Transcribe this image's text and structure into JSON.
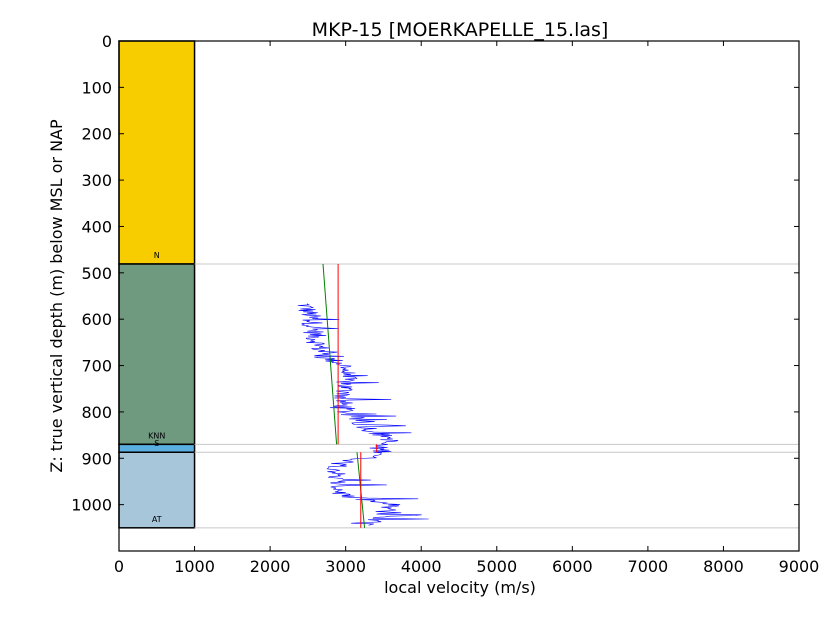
{
  "chart_data": {
    "type": "line",
    "title": "MKP-15 [MOERKAPELLE_15.las]",
    "xlabel": "local velocity (m/s)",
    "ylabel": "Z: true vertical depth (m) below MSL or NAP",
    "xlim": [
      0,
      9000
    ],
    "ylim": [
      1100,
      0
    ],
    "xticks": [
      0,
      1000,
      2000,
      3000,
      4000,
      5000,
      6000,
      7000,
      8000,
      9000
    ],
    "yticks": [
      0,
      100,
      200,
      300,
      400,
      500,
      600,
      700,
      800,
      900,
      1000
    ],
    "grid": false,
    "legend": "none",
    "lithology_column": {
      "x_range": [
        0,
        1000
      ],
      "units": [
        {
          "label": "N",
          "top": 0,
          "bottom": 481,
          "color": "#f8cd00"
        },
        {
          "label": "KNN",
          "top": 481,
          "bottom": 870,
          "color": "#6f9a80"
        },
        {
          "label": "S",
          "top": 870,
          "bottom": 887,
          "color": "#5aaee0"
        },
        {
          "label": "AT",
          "top": 887,
          "bottom": 1050,
          "color": "#a8c6da"
        }
      ]
    },
    "boundaries": [
      481,
      870,
      887,
      1050
    ],
    "series": [
      {
        "kind": "sonic log",
        "color": "#0000ff",
        "depth_start": 566,
        "depth_end": 1045,
        "anchors": [
          [
            566,
            2450
          ],
          [
            600,
            2550
          ],
          [
            640,
            2600
          ],
          [
            680,
            2700
          ],
          [
            700,
            3000
          ],
          [
            740,
            3000
          ],
          [
            780,
            2950
          ],
          [
            800,
            3000
          ],
          [
            840,
            3350
          ],
          [
            860,
            3600
          ],
          [
            875,
            3400
          ],
          [
            890,
            3550
          ],
          [
            910,
            2950
          ],
          [
            940,
            2850
          ],
          [
            980,
            2950
          ],
          [
            1000,
            3600
          ],
          [
            1020,
            3500
          ],
          [
            1045,
            3250
          ]
        ]
      },
      {
        "kind": "constant velocity",
        "color": "#ff0000",
        "segments": [
          {
            "x": 2900,
            "top": 481,
            "bottom": 870
          },
          {
            "x": 3410,
            "top": 870,
            "bottom": 887
          },
          {
            "x": 3200,
            "top": 887,
            "bottom": 1050
          }
        ]
      },
      {
        "kind": "linear velocity",
        "color": "#008000",
        "segments": [
          {
            "top": 481,
            "x_top": 2700,
            "bottom": 870,
            "x_bottom": 2880
          },
          {
            "top": 887,
            "x_top": 3150,
            "bottom": 1050,
            "x_bottom": 3250
          }
        ]
      }
    ]
  }
}
